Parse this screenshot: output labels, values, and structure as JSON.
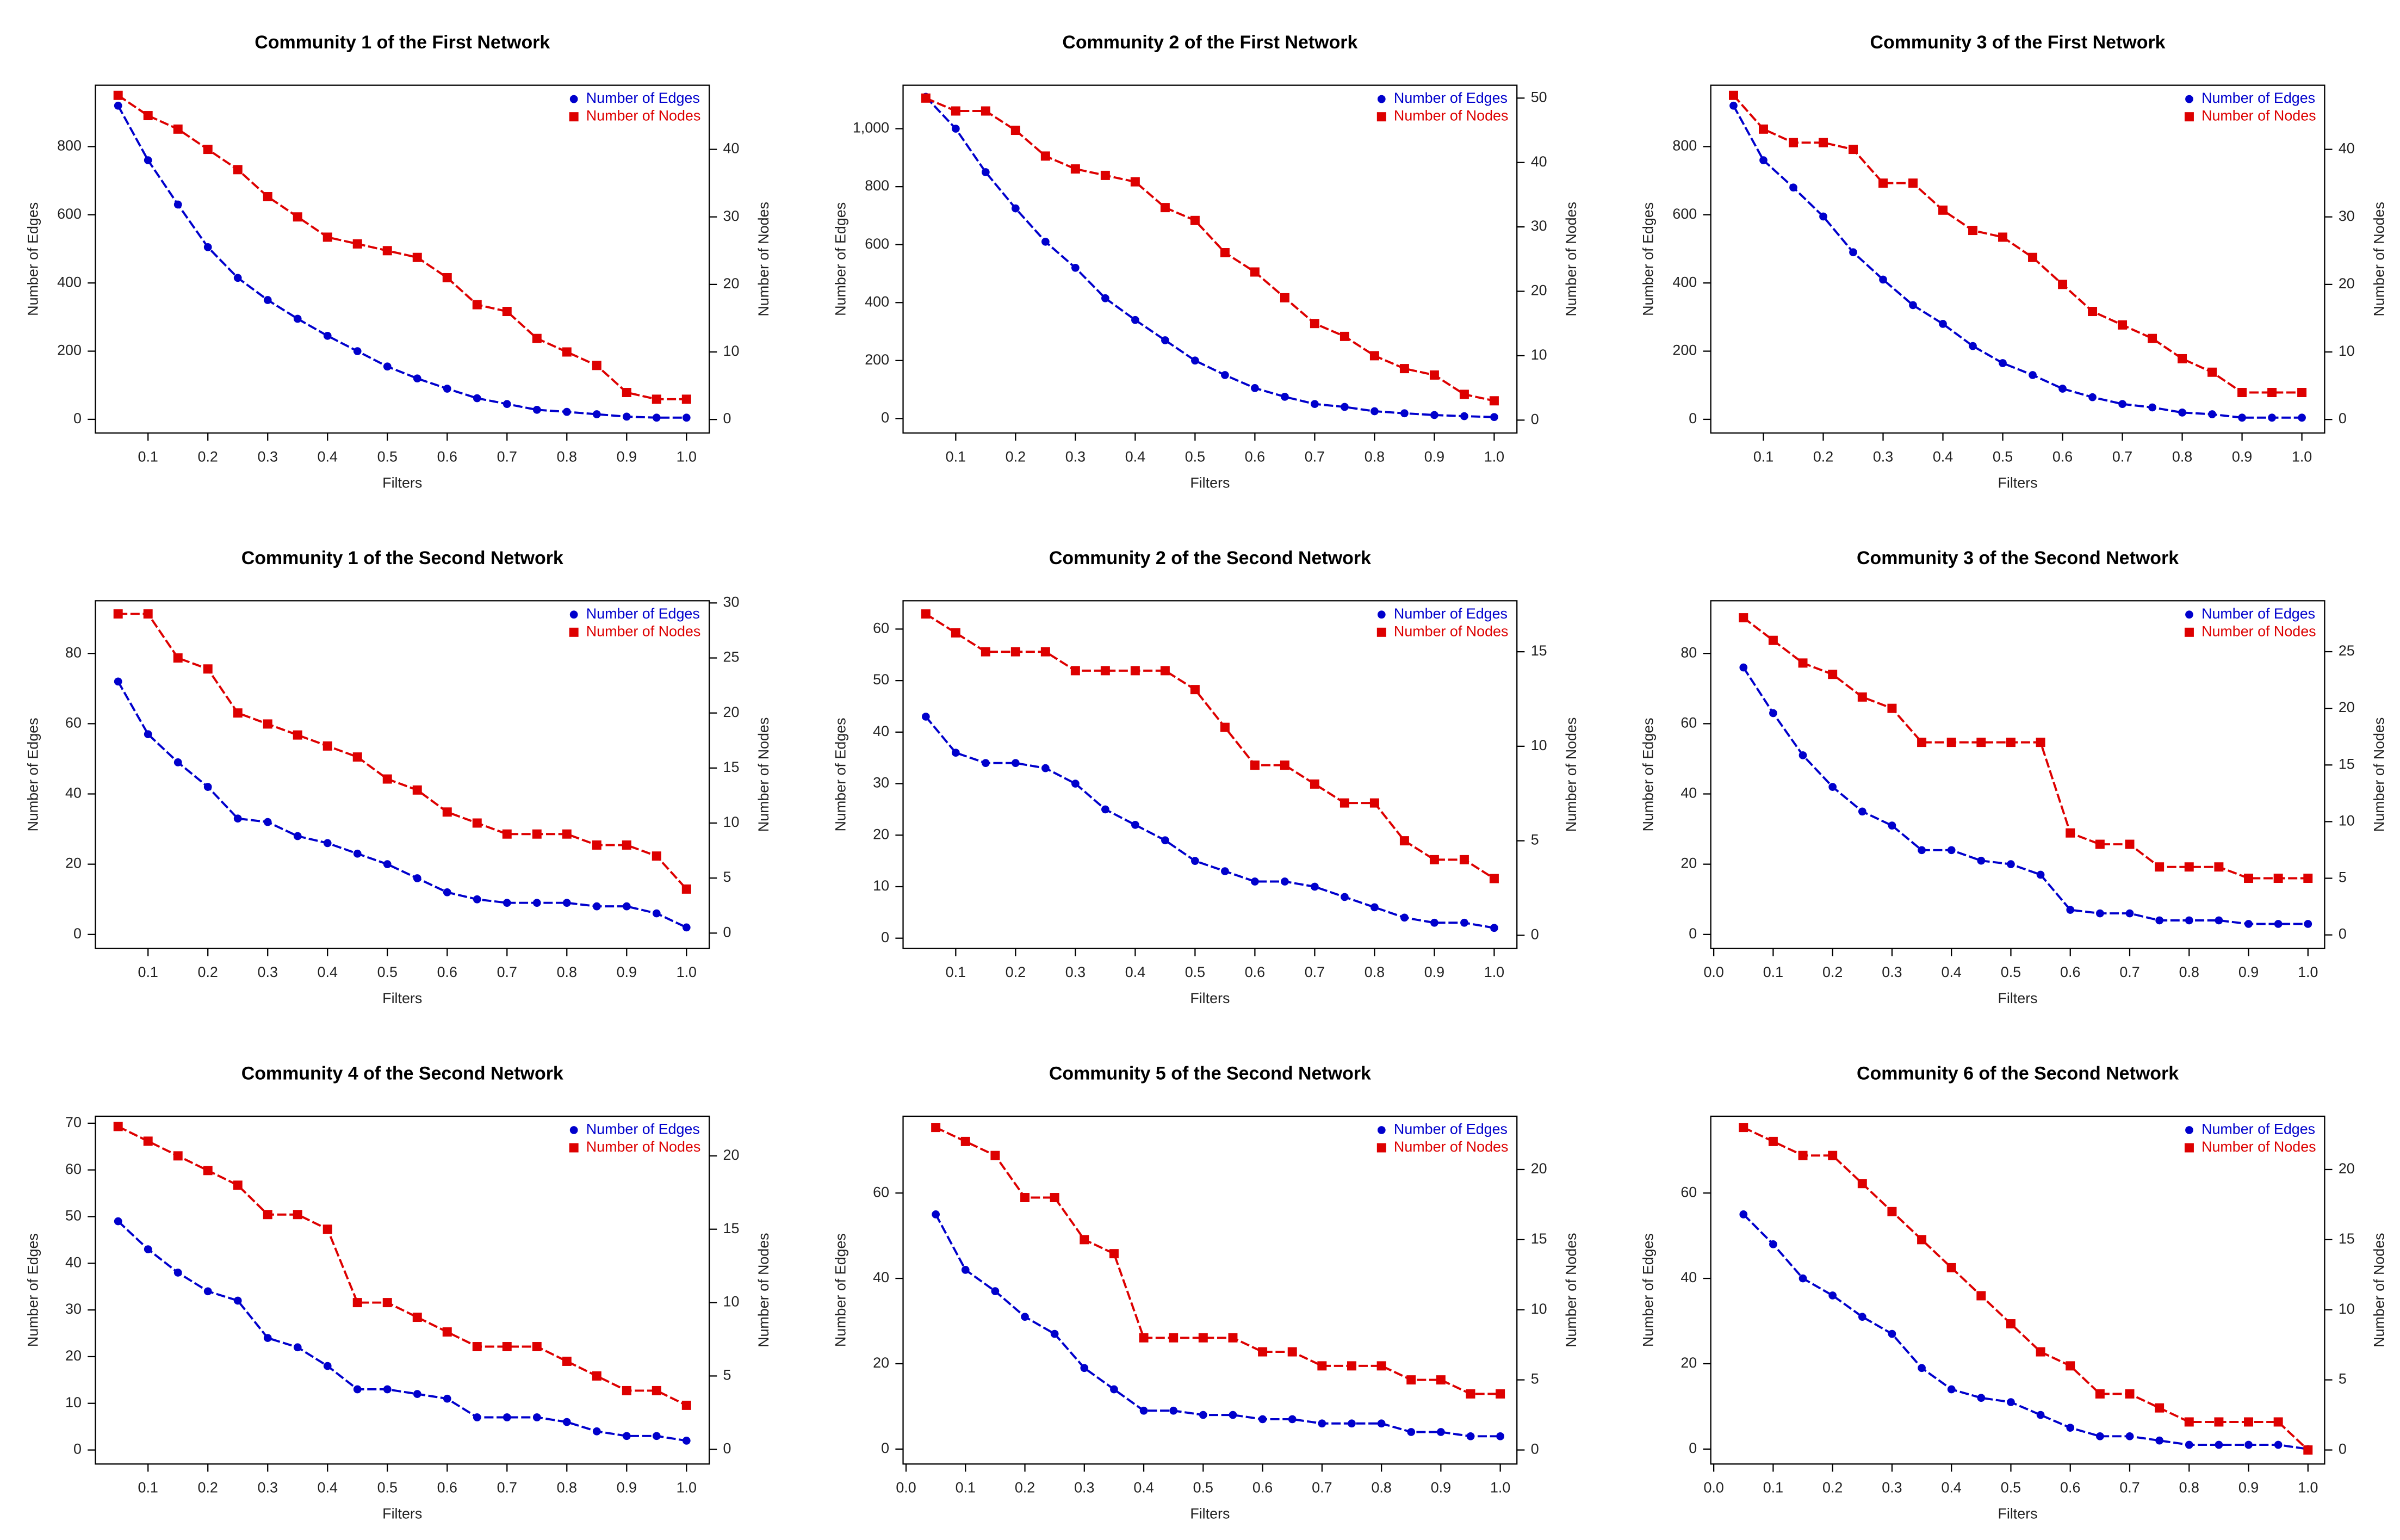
{
  "chart_data": [
    {
      "type": "line",
      "title": "Community 1 of the First Network",
      "xlabel": "Filters",
      "ylabel": "Number of Edges",
      "y2label": "Number of Nodes",
      "legend": "top-right",
      "x": [
        0.05,
        0.1,
        0.15,
        0.2,
        0.25,
        0.3,
        0.35,
        0.4,
        0.45,
        0.5,
        0.55,
        0.6,
        0.65,
        0.7,
        0.75,
        0.8,
        0.85,
        0.9,
        0.95,
        1
      ],
      "xlim": [
        0.012,
        1.038
      ],
      "xticks": [
        0.1,
        0.2,
        0.3,
        0.4,
        0.5,
        0.6,
        0.7,
        0.8,
        0.9,
        {
          "value": 1,
          "label": "1.0"
        }
      ],
      "ylim": [
        -40,
        980
      ],
      "yticks": [
        0,
        200,
        400,
        600,
        800
      ],
      "y2lim": [
        -2,
        49.5
      ],
      "y2ticks": [
        0,
        10,
        20,
        30,
        40
      ],
      "series": [
        {
          "name": "Number of Edges",
          "color": "#0000cc",
          "marker": "circle",
          "values": [
            920,
            760,
            630,
            505,
            415,
            350,
            295,
            245,
            200,
            155,
            120,
            90,
            62,
            45,
            28,
            22,
            15,
            8,
            5,
            5
          ]
        },
        {
          "name": "Number of Nodes",
          "color": "#dd0000",
          "marker": "square",
          "axis": "y2",
          "values": [
            48,
            45,
            43,
            40,
            37,
            33,
            30,
            27,
            26,
            25,
            24,
            21,
            17,
            16,
            12,
            10,
            8,
            4,
            3,
            3
          ]
        }
      ]
    },
    {
      "type": "line",
      "title": "Community 2 of the First Network",
      "xlabel": "Filters",
      "ylabel": "Number of Edges",
      "y2label": "Number of Nodes",
      "legend": "top-right",
      "x": [
        0.05,
        0.1,
        0.15,
        0.2,
        0.25,
        0.3,
        0.35,
        0.4,
        0.45,
        0.5,
        0.55,
        0.6,
        0.65,
        0.7,
        0.75,
        0.8,
        0.85,
        0.9,
        0.95,
        1
      ],
      "xlim": [
        0.012,
        1.038
      ],
      "xticks": [
        0.1,
        0.2,
        0.3,
        0.4,
        0.5,
        0.6,
        0.7,
        0.8,
        0.9,
        {
          "value": 1,
          "label": "1.0"
        }
      ],
      "ylim": [
        -50,
        1150
      ],
      "yticks": [
        0,
        200,
        400,
        600,
        800,
        {
          "value": 1000,
          "label": "1,000"
        }
      ],
      "y2lim": [
        -2,
        52
      ],
      "y2ticks": [
        0,
        10,
        20,
        30,
        40,
        50
      ],
      "series": [
        {
          "name": "Number of Edges",
          "color": "#0000cc",
          "marker": "circle",
          "values": [
            1110,
            1000,
            850,
            725,
            610,
            520,
            415,
            340,
            270,
            200,
            150,
            105,
            75,
            50,
            40,
            25,
            18,
            12,
            8,
            5
          ]
        },
        {
          "name": "Number of Nodes",
          "color": "#dd0000",
          "marker": "square",
          "axis": "y2",
          "values": [
            50,
            48,
            48,
            45,
            41,
            39,
            38,
            37,
            33,
            31,
            26,
            23,
            19,
            15,
            13,
            10,
            8,
            7,
            4,
            3
          ]
        }
      ]
    },
    {
      "type": "line",
      "title": "Community 3 of the First Network",
      "xlabel": "Filters",
      "ylabel": "Number of Edges",
      "y2label": "Number of Nodes",
      "legend": "top-right",
      "x": [
        0.05,
        0.1,
        0.15,
        0.2,
        0.25,
        0.3,
        0.35,
        0.4,
        0.45,
        0.5,
        0.55,
        0.6,
        0.65,
        0.7,
        0.75,
        0.8,
        0.85,
        0.9,
        0.95,
        1
      ],
      "xlim": [
        0.012,
        1.038
      ],
      "xticks": [
        0.1,
        0.2,
        0.3,
        0.4,
        0.5,
        0.6,
        0.7,
        0.8,
        0.9,
        {
          "value": 1,
          "label": "1.0"
        }
      ],
      "ylim": [
        -40,
        980
      ],
      "yticks": [
        0,
        200,
        400,
        600,
        800
      ],
      "y2lim": [
        -2,
        49.5
      ],
      "y2ticks": [
        0,
        10,
        20,
        30,
        40
      ],
      "series": [
        {
          "name": "Number of Edges",
          "color": "#0000cc",
          "marker": "circle",
          "values": [
            920,
            760,
            680,
            595,
            490,
            410,
            335,
            280,
            215,
            165,
            130,
            90,
            65,
            45,
            35,
            20,
            15,
            5,
            5,
            5
          ]
        },
        {
          "name": "Number of Nodes",
          "color": "#dd0000",
          "marker": "square",
          "axis": "y2",
          "values": [
            48,
            43,
            41,
            41,
            40,
            35,
            35,
            31,
            28,
            27,
            24,
            20,
            16,
            14,
            12,
            9,
            7,
            4,
            4,
            4
          ]
        }
      ]
    },
    {
      "type": "line",
      "title": "Community 1 of the Second Network",
      "xlabel": "Filters",
      "ylabel": "Number of Edges",
      "y2label": "Number of Nodes",
      "legend": "top-right",
      "x": [
        0.05,
        0.1,
        0.15,
        0.2,
        0.25,
        0.3,
        0.35,
        0.4,
        0.45,
        0.5,
        0.55,
        0.6,
        0.65,
        0.7,
        0.75,
        0.8,
        0.85,
        0.9,
        0.95,
        1
      ],
      "xlim": [
        0.012,
        1.038
      ],
      "xticks": [
        0.1,
        0.2,
        0.3,
        0.4,
        0.5,
        0.6,
        0.7,
        0.8,
        0.9,
        {
          "value": 1,
          "label": "1.0"
        }
      ],
      "ylim": [
        -4,
        95
      ],
      "yticks": [
        0,
        20,
        40,
        60,
        80
      ],
      "y2lim": [
        -1.4,
        30.2
      ],
      "y2ticks": [
        0,
        5,
        10,
        15,
        20,
        25,
        30
      ],
      "series": [
        {
          "name": "Number of Edges",
          "color": "#0000cc",
          "marker": "circle",
          "values": [
            72,
            57,
            49,
            42,
            33,
            32,
            28,
            26,
            23,
            20,
            16,
            12,
            10,
            9,
            9,
            9,
            8,
            8,
            6,
            2
          ]
        },
        {
          "name": "Number of Nodes",
          "color": "#dd0000",
          "marker": "square",
          "axis": "y2",
          "values": [
            29,
            29,
            25,
            24,
            20,
            19,
            18,
            17,
            16,
            14,
            13,
            11,
            10,
            9,
            9,
            9,
            8,
            8,
            7,
            4
          ]
        }
      ]
    },
    {
      "type": "line",
      "title": "Community 2 of the Second Network",
      "xlabel": "Filters",
      "ylabel": "Number of Edges",
      "y2label": "Number of Nodes",
      "legend": "top-right",
      "x": [
        0.05,
        0.1,
        0.15,
        0.2,
        0.25,
        0.3,
        0.35,
        0.4,
        0.45,
        0.5,
        0.55,
        0.6,
        0.65,
        0.7,
        0.75,
        0.8,
        0.85,
        0.9,
        0.95,
        1
      ],
      "xlim": [
        0.012,
        1.038
      ],
      "xticks": [
        0.1,
        0.2,
        0.3,
        0.4,
        0.5,
        0.6,
        0.7,
        0.8,
        0.9,
        {
          "value": 1,
          "label": "1.0"
        }
      ],
      "ylim": [
        -2,
        65.5
      ],
      "yticks": [
        0,
        10,
        20,
        30,
        40,
        50,
        60
      ],
      "y2lim": [
        -0.7,
        17.7
      ],
      "y2ticks": [
        0,
        5,
        10,
        15
      ],
      "series": [
        {
          "name": "Number of Edges",
          "color": "#0000cc",
          "marker": "circle",
          "values": [
            43,
            36,
            34,
            34,
            33,
            30,
            25,
            22,
            19,
            15,
            13,
            11,
            11,
            10,
            8,
            6,
            4,
            3,
            3,
            2
          ]
        },
        {
          "name": "Number of Nodes",
          "color": "#dd0000",
          "marker": "square",
          "axis": "y2",
          "values": [
            17,
            16,
            15,
            15,
            15,
            14,
            14,
            14,
            14,
            13,
            11,
            9,
            9,
            8,
            7,
            7,
            5,
            4,
            4,
            3
          ]
        }
      ]
    },
    {
      "type": "line",
      "title": "Community 3 of the Second Network",
      "xlabel": "Filters",
      "ylabel": "Number of Edges",
      "y2label": "Number of Nodes",
      "legend": "top-right",
      "x": [
        0.05,
        0.1,
        0.15,
        0.2,
        0.25,
        0.3,
        0.35,
        0.4,
        0.45,
        0.5,
        0.55,
        0.6,
        0.65,
        0.7,
        0.75,
        0.8,
        0.85,
        0.9,
        0.95,
        1
      ],
      "xlim": [
        -0.005,
        1.028
      ],
      "xticks": [
        {
          "value": 0,
          "label": "0.0"
        },
        0.1,
        0.2,
        0.3,
        0.4,
        0.5,
        0.6,
        0.7,
        0.8,
        0.9,
        {
          "value": 1,
          "label": "1.0"
        }
      ],
      "ylim": [
        -4,
        95
      ],
      "yticks": [
        0,
        20,
        40,
        60,
        80
      ],
      "y2lim": [
        -1.2,
        29.5
      ],
      "y2ticks": [
        0,
        5,
        10,
        15,
        20,
        25
      ],
      "series": [
        {
          "name": "Number of Edges",
          "color": "#0000cc",
          "marker": "circle",
          "values": [
            76,
            63,
            51,
            42,
            35,
            31,
            24,
            24,
            21,
            20,
            17,
            7,
            6,
            6,
            4,
            4,
            4,
            3,
            3,
            3
          ]
        },
        {
          "name": "Number of Nodes",
          "color": "#dd0000",
          "marker": "square",
          "axis": "y2",
          "values": [
            28,
            26,
            24,
            23,
            21,
            20,
            17,
            17,
            17,
            17,
            17,
            9,
            8,
            8,
            6,
            6,
            6,
            5,
            5,
            5
          ]
        }
      ]
    },
    {
      "type": "line",
      "title": "Community 4 of the Second Network",
      "xlabel": "Filters",
      "ylabel": "Number of Edges",
      "y2label": "Number of Nodes",
      "legend": "top-right",
      "x": [
        0.05,
        0.1,
        0.15,
        0.2,
        0.25,
        0.3,
        0.35,
        0.4,
        0.45,
        0.5,
        0.55,
        0.6,
        0.65,
        0.7,
        0.75,
        0.8,
        0.85,
        0.9,
        0.95,
        1
      ],
      "xlim": [
        0.012,
        1.038
      ],
      "xticks": [
        0.1,
        0.2,
        0.3,
        0.4,
        0.5,
        0.6,
        0.7,
        0.8,
        0.9,
        {
          "value": 1,
          "label": "1.0"
        }
      ],
      "ylim": [
        -3,
        71.5
      ],
      "yticks": [
        0,
        10,
        20,
        30,
        40,
        50,
        60,
        70
      ],
      "y2lim": [
        -1,
        22.7
      ],
      "y2ticks": [
        0,
        5,
        10,
        15,
        20
      ],
      "series": [
        {
          "name": "Number of Edges",
          "color": "#0000cc",
          "marker": "circle",
          "values": [
            49,
            43,
            38,
            34,
            32,
            24,
            22,
            18,
            13,
            13,
            12,
            11,
            7,
            7,
            7,
            6,
            4,
            3,
            3,
            2
          ]
        },
        {
          "name": "Number of Nodes",
          "color": "#dd0000",
          "marker": "square",
          "axis": "y2",
          "values": [
            22,
            21,
            20,
            19,
            18,
            16,
            16,
            15,
            10,
            10,
            9,
            8,
            7,
            7,
            7,
            6,
            5,
            4,
            4,
            3
          ]
        }
      ]
    },
    {
      "type": "line",
      "title": "Community 5 of the Second Network",
      "xlabel": "Filters",
      "ylabel": "Number of Edges",
      "y2label": "Number of Nodes",
      "legend": "top-right",
      "x": [
        0.05,
        0.1,
        0.15,
        0.2,
        0.25,
        0.3,
        0.35,
        0.4,
        0.45,
        0.5,
        0.55,
        0.6,
        0.65,
        0.7,
        0.75,
        0.8,
        0.85,
        0.9,
        0.95,
        1
      ],
      "xlim": [
        -0.005,
        1.028
      ],
      "xticks": [
        {
          "value": 0,
          "label": "0.0"
        },
        0.1,
        0.2,
        0.3,
        0.4,
        0.5,
        0.6,
        0.7,
        0.8,
        0.9,
        {
          "value": 1,
          "label": "1.0"
        }
      ],
      "ylim": [
        -3.5,
        78
      ],
      "yticks": [
        0,
        20,
        40,
        60
      ],
      "y2lim": [
        -1,
        23.8
      ],
      "y2ticks": [
        0,
        5,
        10,
        15,
        20
      ],
      "series": [
        {
          "name": "Number of Edges",
          "color": "#0000cc",
          "marker": "circle",
          "values": [
            55,
            42,
            37,
            31,
            27,
            19,
            14,
            9,
            9,
            8,
            8,
            7,
            7,
            6,
            6,
            6,
            4,
            4,
            3,
            3
          ]
        },
        {
          "name": "Number of Nodes",
          "color": "#dd0000",
          "marker": "square",
          "axis": "y2",
          "values": [
            23,
            22,
            21,
            18,
            18,
            15,
            14,
            8,
            8,
            8,
            8,
            7,
            7,
            6,
            6,
            6,
            5,
            5,
            4,
            4
          ]
        }
      ]
    },
    {
      "type": "line",
      "title": "Community 6 of the Second Network",
      "xlabel": "Filters",
      "ylabel": "Number of Edges",
      "y2label": "Number of Nodes",
      "legend": "top-right",
      "x": [
        0.05,
        0.1,
        0.15,
        0.2,
        0.25,
        0.3,
        0.35,
        0.4,
        0.45,
        0.5,
        0.55,
        0.6,
        0.65,
        0.7,
        0.75,
        0.8,
        0.85,
        0.9,
        0.95,
        1
      ],
      "xlim": [
        -0.005,
        1.028
      ],
      "xticks": [
        {
          "value": 0,
          "label": "0.0"
        },
        0.1,
        0.2,
        0.3,
        0.4,
        0.5,
        0.6,
        0.7,
        0.8,
        0.9,
        {
          "value": 1,
          "label": "1.0"
        }
      ],
      "ylim": [
        -3.5,
        78
      ],
      "yticks": [
        0,
        20,
        40,
        60
      ],
      "y2lim": [
        -1,
        23.8
      ],
      "y2ticks": [
        0,
        5,
        10,
        15,
        20
      ],
      "series": [
        {
          "name": "Number of Edges",
          "color": "#0000cc",
          "marker": "circle",
          "values": [
            55,
            48,
            40,
            36,
            31,
            27,
            19,
            14,
            12,
            11,
            8,
            5,
            3,
            3,
            2,
            1,
            1,
            1,
            1,
            0
          ]
        },
        {
          "name": "Number of Nodes",
          "color": "#dd0000",
          "marker": "square",
          "axis": "y2",
          "values": [
            23,
            22,
            21,
            21,
            19,
            17,
            15,
            13,
            11,
            9,
            7,
            6,
            4,
            4,
            3,
            2,
            2,
            2,
            2,
            0
          ]
        }
      ]
    }
  ]
}
